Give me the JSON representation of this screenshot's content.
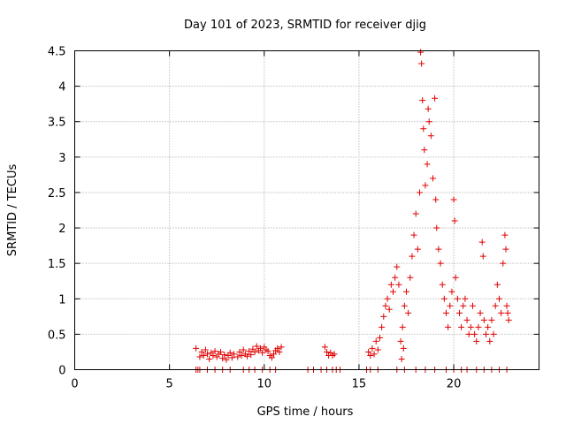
{
  "chart_data": {
    "type": "scatter",
    "title": "Day 101 of 2023, SRMTID for receiver djig",
    "xlabel": "GPS time / hours",
    "ylabel": "SRMTID / TECUs",
    "xlim": [
      0,
      24.5
    ],
    "ylim": [
      0,
      4.5
    ],
    "xticks": [
      0,
      5,
      10,
      15,
      20
    ],
    "yticks": [
      0,
      0.5,
      1,
      1.5,
      2,
      2.5,
      3,
      3.5,
      4,
      4.5
    ],
    "grid": true,
    "marker": "+",
    "color": "#e00000",
    "series": [
      {
        "name": "SRMTID",
        "points": [
          [
            6.4,
            0
          ],
          [
            6.5,
            0
          ],
          [
            6.6,
            0
          ],
          [
            7.0,
            0
          ],
          [
            7.4,
            0
          ],
          [
            7.8,
            0
          ],
          [
            8.2,
            0
          ],
          [
            8.9,
            0
          ],
          [
            9.2,
            0
          ],
          [
            9.5,
            0
          ],
          [
            9.9,
            0
          ],
          [
            10.3,
            0
          ],
          [
            10.6,
            0
          ],
          [
            12.3,
            0
          ],
          [
            12.6,
            0
          ],
          [
            13.0,
            0
          ],
          [
            13.3,
            0
          ],
          [
            13.6,
            0
          ],
          [
            13.8,
            0
          ],
          [
            14.0,
            0
          ],
          [
            15.4,
            0
          ],
          [
            15.6,
            0
          ],
          [
            16.0,
            0
          ],
          [
            17.0,
            0
          ],
          [
            17.4,
            0
          ],
          [
            18.0,
            0
          ],
          [
            18.5,
            0
          ],
          [
            19.0,
            0
          ],
          [
            19.6,
            0
          ],
          [
            20.0,
            0
          ],
          [
            20.4,
            0
          ],
          [
            20.7,
            0
          ],
          [
            21.2,
            0
          ],
          [
            21.6,
            0
          ],
          [
            22.0,
            0
          ],
          [
            22.4,
            0
          ],
          [
            22.8,
            0
          ],
          [
            6.4,
            0.3
          ],
          [
            6.6,
            0.18
          ],
          [
            6.7,
            0.25
          ],
          [
            6.8,
            0.2
          ],
          [
            6.9,
            0.28
          ],
          [
            7.0,
            0.22
          ],
          [
            7.1,
            0.15
          ],
          [
            7.2,
            0.24
          ],
          [
            7.3,
            0.2
          ],
          [
            7.4,
            0.26
          ],
          [
            7.5,
            0.18
          ],
          [
            7.6,
            0.22
          ],
          [
            7.7,
            0.25
          ],
          [
            7.8,
            0.16
          ],
          [
            7.9,
            0.21
          ],
          [
            8.0,
            0.14
          ],
          [
            8.1,
            0.2
          ],
          [
            8.2,
            0.24
          ],
          [
            8.3,
            0.17
          ],
          [
            8.4,
            0.22
          ],
          [
            8.6,
            0.18
          ],
          [
            8.7,
            0.25
          ],
          [
            8.8,
            0.2
          ],
          [
            8.9,
            0.28
          ],
          [
            9.0,
            0.22
          ],
          [
            9.1,
            0.19
          ],
          [
            9.2,
            0.26
          ],
          [
            9.3,
            0.21
          ],
          [
            9.4,
            0.29
          ],
          [
            9.5,
            0.25
          ],
          [
            9.6,
            0.33
          ],
          [
            9.7,
            0.27
          ],
          [
            9.8,
            0.3
          ],
          [
            9.9,
            0.24
          ],
          [
            10.0,
            0.32
          ],
          [
            10.1,
            0.28
          ],
          [
            10.2,
            0.26
          ],
          [
            10.3,
            0.2
          ],
          [
            10.4,
            0.17
          ],
          [
            10.5,
            0.22
          ],
          [
            10.6,
            0.27
          ],
          [
            10.7,
            0.3
          ],
          [
            10.8,
            0.25
          ],
          [
            10.9,
            0.32
          ],
          [
            13.2,
            0.32
          ],
          [
            13.3,
            0.25
          ],
          [
            13.4,
            0.2
          ],
          [
            13.5,
            0.24
          ],
          [
            13.6,
            0.2
          ],
          [
            13.7,
            0.22
          ],
          [
            15.5,
            0.25
          ],
          [
            15.6,
            0.2
          ],
          [
            15.7,
            0.3
          ],
          [
            15.8,
            0.22
          ],
          [
            15.9,
            0.4
          ],
          [
            16.0,
            0.28
          ],
          [
            16.1,
            0.45
          ],
          [
            16.2,
            0.6
          ],
          [
            16.3,
            0.75
          ],
          [
            16.4,
            0.9
          ],
          [
            16.5,
            1.0
          ],
          [
            16.6,
            0.85
          ],
          [
            16.7,
            1.2
          ],
          [
            16.8,
            1.1
          ],
          [
            16.9,
            1.3
          ],
          [
            17.0,
            1.45
          ],
          [
            17.1,
            1.2
          ],
          [
            17.2,
            0.4
          ],
          [
            17.25,
            0.15
          ],
          [
            17.3,
            0.6
          ],
          [
            17.35,
            0.3
          ],
          [
            17.4,
            0.9
          ],
          [
            17.5,
            1.1
          ],
          [
            17.6,
            0.8
          ],
          [
            17.7,
            1.3
          ],
          [
            17.8,
            1.6
          ],
          [
            17.9,
            1.9
          ],
          [
            18.0,
            2.2
          ],
          [
            18.1,
            1.7
          ],
          [
            18.2,
            2.5
          ],
          [
            18.25,
            4.48
          ],
          [
            18.3,
            4.32
          ],
          [
            18.35,
            3.8
          ],
          [
            18.4,
            3.4
          ],
          [
            18.45,
            3.1
          ],
          [
            18.5,
            2.6
          ],
          [
            18.6,
            2.9
          ],
          [
            18.65,
            3.68
          ],
          [
            18.7,
            3.5
          ],
          [
            18.8,
            3.3
          ],
          [
            18.9,
            2.7
          ],
          [
            19.0,
            3.83
          ],
          [
            19.05,
            2.4
          ],
          [
            19.1,
            2.0
          ],
          [
            19.2,
            1.7
          ],
          [
            19.3,
            1.5
          ],
          [
            19.4,
            1.2
          ],
          [
            19.5,
            1.0
          ],
          [
            19.6,
            0.8
          ],
          [
            19.7,
            0.6
          ],
          [
            19.8,
            0.9
          ],
          [
            19.9,
            1.1
          ],
          [
            20.0,
            2.4
          ],
          [
            20.05,
            2.1
          ],
          [
            20.1,
            1.3
          ],
          [
            20.2,
            1.0
          ],
          [
            20.3,
            0.8
          ],
          [
            20.4,
            0.6
          ],
          [
            20.5,
            0.9
          ],
          [
            20.6,
            1.0
          ],
          [
            20.7,
            0.7
          ],
          [
            20.8,
            0.5
          ],
          [
            20.9,
            0.6
          ],
          [
            21.0,
            0.9
          ],
          [
            21.1,
            0.5
          ],
          [
            21.2,
            0.4
          ],
          [
            21.3,
            0.6
          ],
          [
            21.4,
            0.8
          ],
          [
            21.5,
            1.8
          ],
          [
            21.55,
            1.6
          ],
          [
            21.6,
            0.7
          ],
          [
            21.7,
            0.5
          ],
          [
            21.8,
            0.6
          ],
          [
            21.9,
            0.4
          ],
          [
            22.0,
            0.7
          ],
          [
            22.1,
            0.5
          ],
          [
            22.2,
            0.9
          ],
          [
            22.3,
            1.2
          ],
          [
            22.4,
            1.0
          ],
          [
            22.5,
            0.8
          ],
          [
            22.6,
            1.5
          ],
          [
            22.7,
            1.9
          ],
          [
            22.75,
            1.7
          ],
          [
            22.8,
            0.9
          ],
          [
            22.85,
            0.8
          ],
          [
            22.9,
            0.7
          ]
        ]
      }
    ]
  }
}
